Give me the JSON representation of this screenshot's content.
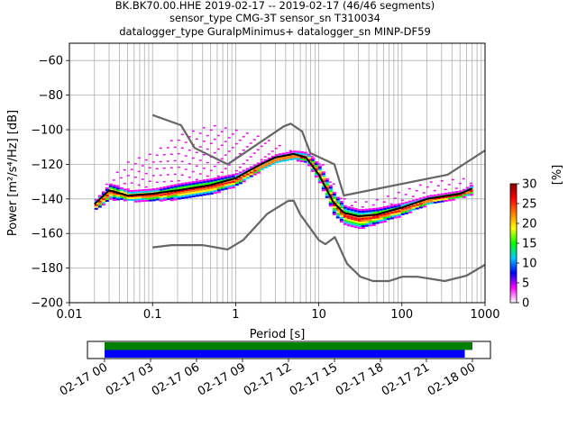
{
  "chart_data": {
    "type": "heatmap",
    "title_lines": [
      "BK.BK70.00.HHE   2019-02-17 -- 2019-02-17  (46/46 segments)",
      "sensor_type CMG-3T sensor_sn T310034",
      "datalogger_type GuralpMinimus+ datalogger_sn MINP-DF59"
    ],
    "x_axis": {
      "label": "Period [s]",
      "scale": "log",
      "range": [
        0.01,
        1000
      ],
      "ticks": [
        0.01,
        0.1,
        1,
        10,
        100,
        1000
      ],
      "tick_labels": [
        "0.01",
        "0.1",
        "1",
        "10",
        "100",
        "1000"
      ]
    },
    "y_axis": {
      "label": "Power [m²/s⁴/Hz] [dB]",
      "range": [
        -200,
        -50
      ],
      "ticks": [
        -200,
        -180,
        -160,
        -140,
        -120,
        -100,
        -80,
        -60
      ],
      "tick_labels": [
        "−200",
        "−180",
        "−160",
        "−140",
        "−120",
        "−100",
        "−80",
        "−60"
      ]
    },
    "grid": true,
    "colorbar": {
      "label": "[%]",
      "range": [
        0,
        30
      ],
      "ticks": [
        0,
        5,
        10,
        15,
        20,
        25,
        30
      ],
      "tick_labels": [
        "0",
        "5",
        "10",
        "15",
        "20",
        "25",
        "30"
      ],
      "colors": [
        "#ffffff",
        "#ff00ff",
        "#0000ff",
        "#00c8ff",
        "#00ff00",
        "#ffff00",
        "#ff8000",
        "#ff0000",
        "#8b0000"
      ]
    },
    "series": [
      {
        "role": "mean",
        "color": "#000000",
        "x": [
          0.02,
          0.03,
          0.05,
          0.1,
          0.2,
          0.5,
          1,
          2,
          3,
          5,
          7,
          10,
          15,
          20,
          30,
          50,
          100,
          200,
          500,
          700
        ],
        "y": [
          -143,
          -135,
          -138,
          -137,
          -135,
          -132,
          -128,
          -120,
          -116,
          -114,
          -116,
          -126,
          -142,
          -148,
          -150,
          -149,
          -145,
          -140,
          -137,
          -134
        ]
      },
      {
        "role": "high_noise_model",
        "color": "#666666",
        "x": [
          0.1,
          0.22,
          0.32,
          0.8,
          3.8,
          4.6,
          6.3,
          7.9,
          15.4,
          20,
          354.8,
          1000
        ],
        "y": [
          -91.5,
          -97.4,
          -110.5,
          -120,
          -98,
          -96.5,
          -101,
          -113.5,
          -120,
          -138,
          -126,
          -112
        ]
      },
      {
        "role": "low_noise_model",
        "color": "#666666",
        "x": [
          0.1,
          0.17,
          0.4,
          0.8,
          1.24,
          2.4,
          4.3,
          5,
          6,
          10,
          12,
          15.6,
          21.9,
          31.6,
          45,
          70,
          101,
          154,
          328,
          600,
          1000
        ],
        "y": [
          -168,
          -166.7,
          -166.7,
          -169.2,
          -163.7,
          -148.6,
          -141.1,
          -141.1,
          -149,
          -163.8,
          -166.2,
          -162.1,
          -177.5,
          -185,
          -187.5,
          -187.5,
          -185,
          -185,
          -187.5,
          -184.4,
          -178
        ]
      }
    ],
    "density_band": {
      "x": [
        0.02,
        0.03,
        0.05,
        0.1,
        0.2,
        0.5,
        1,
        2,
        3,
        5,
        7,
        10,
        15,
        20,
        30,
        50,
        100,
        200,
        500,
        700
      ],
      "core_low": [
        -146,
        -140,
        -141,
        -141,
        -140,
        -137,
        -132,
        -123,
        -119,
        -117,
        -119,
        -131,
        -150,
        -155,
        -157,
        -154,
        -149,
        -143,
        -139,
        -137
      ],
      "core_high": [
        -140,
        -131,
        -135,
        -134,
        -131,
        -128,
        -125,
        -118,
        -114,
        -112,
        -113,
        -121,
        -137,
        -144,
        -146,
        -145,
        -142,
        -138,
        -135,
        -131
      ],
      "outlier_high": [
        -140,
        -128,
        -118,
        -113,
        -103,
        -97,
        -100,
        -104,
        -108,
        -113,
        -114,
        -117,
        -132,
        -140,
        -142,
        -140,
        -135,
        -130,
        -128,
        -128
      ]
    },
    "time_axis": {
      "range_hours": [
        0,
        24
      ],
      "ticks_hours": [
        0,
        3,
        6,
        9,
        12,
        15,
        18,
        21,
        24
      ],
      "tick_labels": [
        "02-17 00",
        "02-17 03",
        "02-17 06",
        "02-17 09",
        "02-17 12",
        "02-17 15",
        "02-17 18",
        "02-17 21",
        "02-18 00"
      ],
      "bars": [
        {
          "color": "#008000",
          "start_hours": 0,
          "end_hours": 24.0
        },
        {
          "color": "#0000ff",
          "start_hours": 0,
          "end_hours": 23.5
        }
      ]
    }
  }
}
